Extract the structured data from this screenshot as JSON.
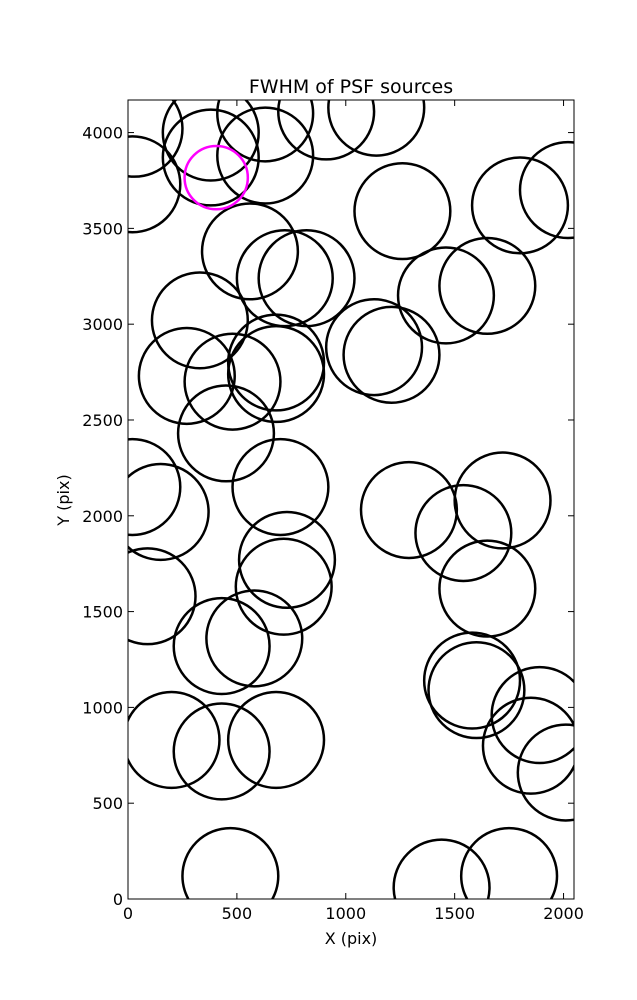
{
  "chart_data": {
    "type": "scatter",
    "title": "FWHM of PSF sources",
    "xlabel": "X (pix)",
    "ylabel": "Y (pix)",
    "xlim": [
      0,
      2048
    ],
    "ylim": [
      0,
      4170
    ],
    "xticks": [
      0,
      500,
      1000,
      1500,
      2000
    ],
    "yticks": [
      0,
      500,
      1000,
      1500,
      2000,
      2500,
      3000,
      3500,
      4000
    ],
    "grid": false,
    "marker": "circle",
    "circle_radius_data": 220,
    "default_color": "#000000",
    "highlight_color": "#ff00ff",
    "sources": [
      {
        "x": 30,
        "y": 4020
      },
      {
        "x": 380,
        "y": 4000
      },
      {
        "x": 630,
        "y": 4100
      },
      {
        "x": 910,
        "y": 4110
      },
      {
        "x": 1140,
        "y": 4130
      },
      {
        "x": 380,
        "y": 3870
      },
      {
        "x": 630,
        "y": 3880
      },
      {
        "x": 20,
        "y": 3730
      },
      {
        "x": 405,
        "y": 3765,
        "highlight": true
      },
      {
        "x": 1260,
        "y": 3590
      },
      {
        "x": 1800,
        "y": 3620
      },
      {
        "x": 2020,
        "y": 3700
      },
      {
        "x": 560,
        "y": 3380
      },
      {
        "x": 720,
        "y": 3240
      },
      {
        "x": 820,
        "y": 3240
      },
      {
        "x": 1460,
        "y": 3150
      },
      {
        "x": 1650,
        "y": 3200
      },
      {
        "x": 330,
        "y": 3020
      },
      {
        "x": 1130,
        "y": 2880
      },
      {
        "x": 1210,
        "y": 2840
      },
      {
        "x": 270,
        "y": 2730
      },
      {
        "x": 680,
        "y": 2800
      },
      {
        "x": 480,
        "y": 2700
      },
      {
        "x": 680,
        "y": 2740
      },
      {
        "x": 450,
        "y": 2430
      },
      {
        "x": 20,
        "y": 2150
      },
      {
        "x": 150,
        "y": 2020
      },
      {
        "x": 700,
        "y": 2150
      },
      {
        "x": 1290,
        "y": 2030
      },
      {
        "x": 1720,
        "y": 2080
      },
      {
        "x": 1540,
        "y": 1910
      },
      {
        "x": 730,
        "y": 1770
      },
      {
        "x": 715,
        "y": 1630
      },
      {
        "x": 1650,
        "y": 1620
      },
      {
        "x": 90,
        "y": 1580
      },
      {
        "x": 430,
        "y": 1320
      },
      {
        "x": 580,
        "y": 1360
      },
      {
        "x": 1580,
        "y": 1140
      },
      {
        "x": 1600,
        "y": 1090
      },
      {
        "x": 1890,
        "y": 960
      },
      {
        "x": 1850,
        "y": 800
      },
      {
        "x": 2010,
        "y": 660
      },
      {
        "x": 200,
        "y": 830
      },
      {
        "x": 430,
        "y": 770
      },
      {
        "x": 680,
        "y": 830
      },
      {
        "x": 470,
        "y": 120
      },
      {
        "x": 1440,
        "y": 60
      },
      {
        "x": 1750,
        "y": 120
      }
    ]
  }
}
